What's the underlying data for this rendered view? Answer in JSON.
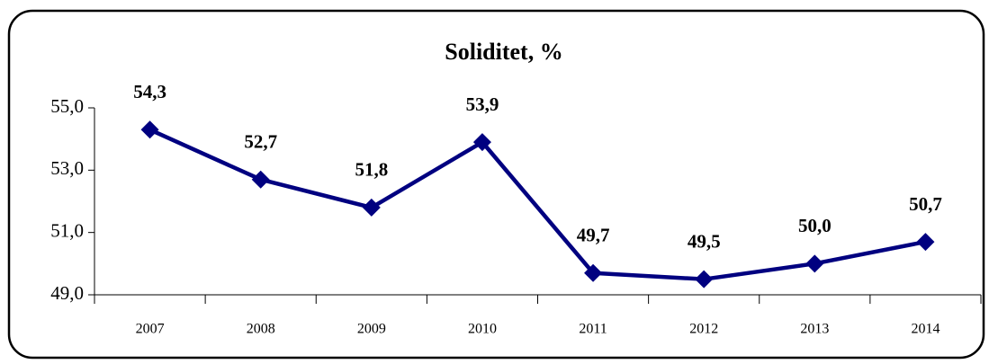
{
  "chart_data": {
    "type": "line",
    "title": "Soliditet, %",
    "categories": [
      "2007",
      "2008",
      "2009",
      "2010",
      "2011",
      "2012",
      "2013",
      "2014"
    ],
    "series": [
      {
        "name": "Soliditet",
        "color": "#000080",
        "values": [
          54.3,
          52.7,
          51.8,
          53.9,
          49.7,
          49.5,
          50.0,
          50.7
        ],
        "value_labels": [
          "54,3",
          "52,7",
          "51,8",
          "53,9",
          "49,7",
          "49,5",
          "50,0",
          "50,7"
        ]
      }
    ],
    "ylim": [
      49,
      55
    ],
    "yticks": [
      {
        "value": 49,
        "label": "49,0"
      },
      {
        "value": 51,
        "label": "51,0"
      },
      {
        "value": 53,
        "label": "53,0"
      },
      {
        "value": 55,
        "label": "55,0"
      }
    ],
    "grid": false
  }
}
